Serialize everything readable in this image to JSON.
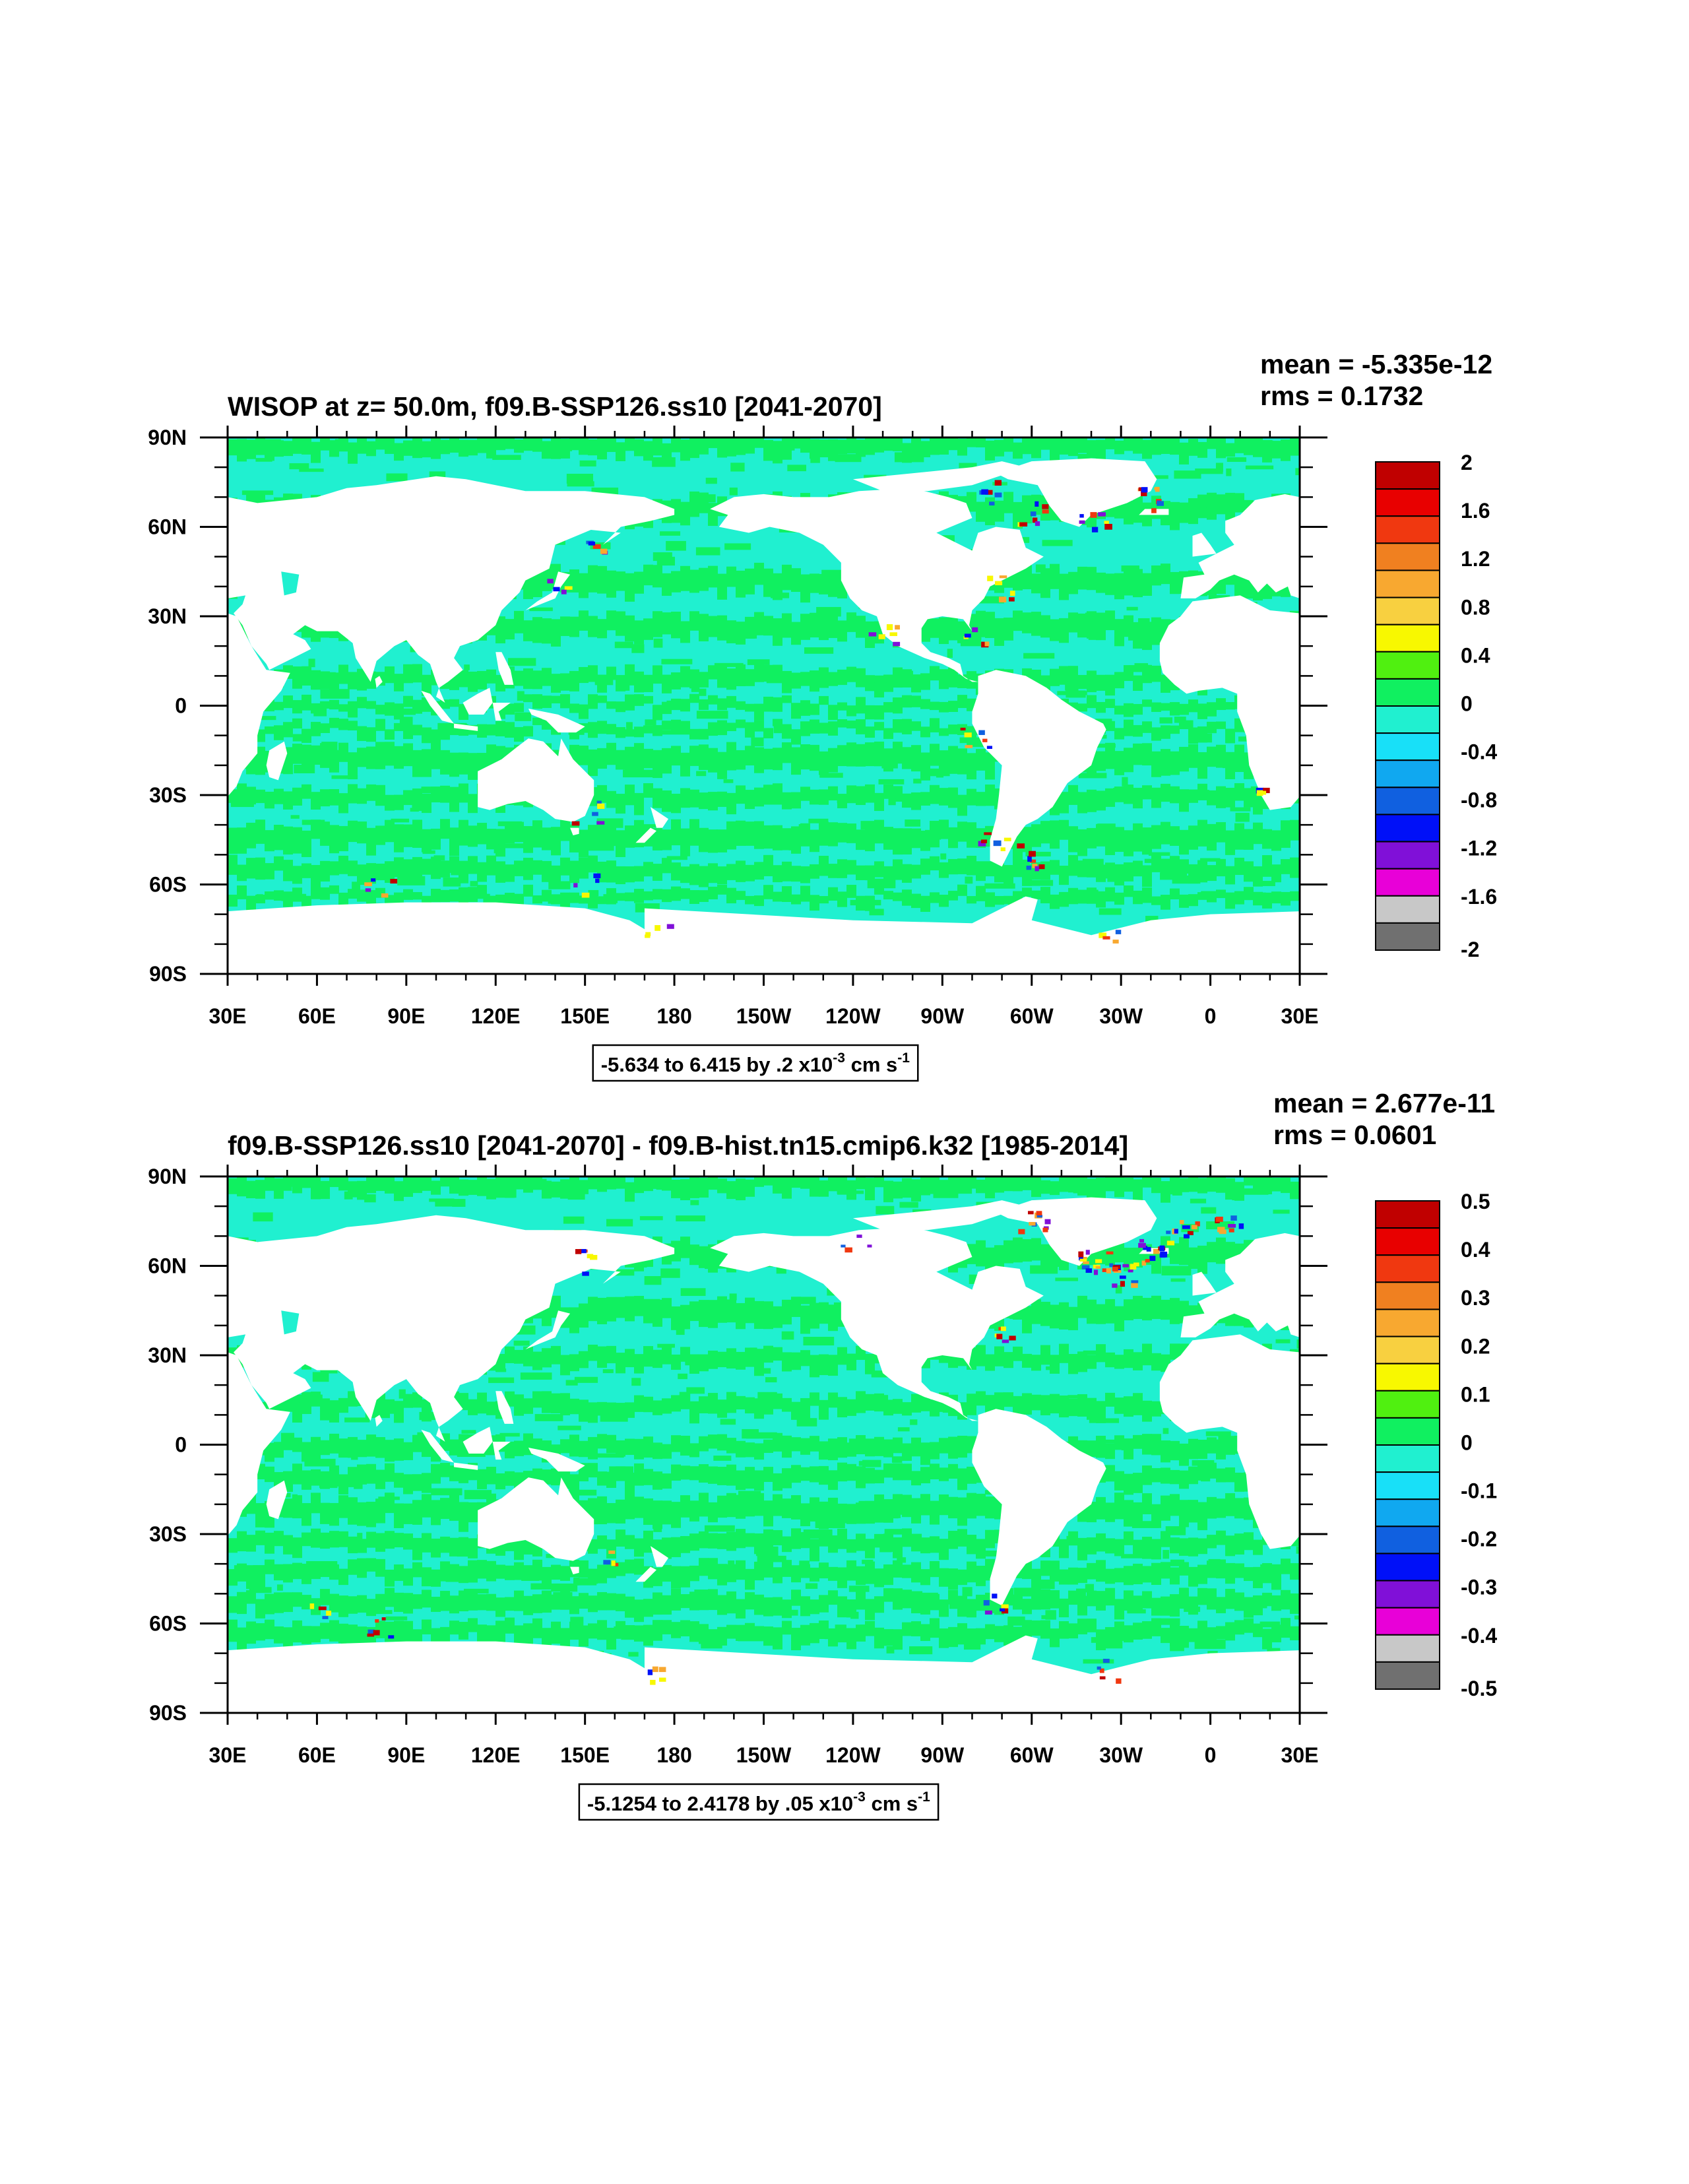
{
  "panels": [
    {
      "title": "WISOP at z=  50.0m, f09.B-SSP126.ss10 [2041-2070]",
      "mean": "mean = -5.335e-12",
      "rms": "rms = 0.1732",
      "range_text": "-5.634 to 6.415 by .2 x10",
      "range_exp": "-3",
      "range_units": " cm s",
      "range_units_exp": "-1",
      "colorbar_labels": [
        "2",
        "1.6",
        "1.2",
        "0.8",
        "0.4",
        "0",
        "-0.4",
        "-0.8",
        "-1.2",
        "-1.6",
        "-2"
      ]
    },
    {
      "title": "f09.B-SSP126.ss10 [2041-2070] - f09.B-hist.tn15.cmip6.k32 [1985-2014]",
      "mean": "mean = 2.677e-11",
      "rms": "rms = 0.0601",
      "range_text": "-5.1254 to 2.4178 by .05 x10",
      "range_exp": "-3",
      "range_units": " cm s",
      "range_units_exp": "-1",
      "colorbar_labels": [
        "0.5",
        "0.4",
        "0.3",
        "0.2",
        "0.1",
        "0",
        "-0.1",
        "-0.2",
        "-0.3",
        "-0.4",
        "-0.5"
      ]
    }
  ],
  "axes": {
    "lon_labels": [
      "30E",
      "60E",
      "90E",
      "120E",
      "150E",
      "180",
      "150W",
      "120W",
      "90W",
      "60W",
      "30W",
      "0",
      "30E"
    ],
    "lat_labels": [
      "90N",
      "60N",
      "30N",
      "0",
      "30S",
      "60S",
      "90S"
    ]
  },
  "colors": {
    "land": "#ffffff",
    "ocean_near_zero_pos": "#10f060",
    "ocean_near_zero_neg": "#20f0d0",
    "colorbar": [
      "#c00000",
      "#e80000",
      "#f03810",
      "#f08020",
      "#f8a830",
      "#f8d040",
      "#f8f800",
      "#50f010",
      "#10f060",
      "#20f0d0",
      "#18e0f8",
      "#10a8f0",
      "#1060e0",
      "#0010f8",
      "#8010d8",
      "#e800d8",
      "#c8c8c8",
      "#707070"
    ]
  }
}
